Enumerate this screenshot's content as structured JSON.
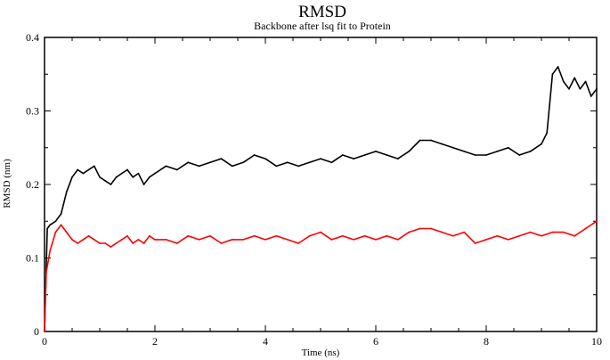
{
  "chart_data": {
    "type": "line",
    "title": "RMSD",
    "subtitle": "Backbone after lsq fit to Protein",
    "xlabel": "Time (ns)",
    "ylabel": "RMSD (nm)",
    "xlim": [
      0,
      10
    ],
    "ylim": [
      0,
      0.4
    ],
    "x_ticks": [
      "0",
      "2",
      "4",
      "6",
      "8",
      "10"
    ],
    "y_ticks": [
      "0",
      "0.1",
      "0.2",
      "0.3",
      "0.4"
    ],
    "grid": false,
    "legend": "none",
    "series": [
      {
        "color": "#000000",
        "x": [
          0,
          0.05,
          0.1,
          0.2,
          0.3,
          0.4,
          0.5,
          0.6,
          0.7,
          0.8,
          0.9,
          1.0,
          1.1,
          1.2,
          1.3,
          1.4,
          1.5,
          1.6,
          1.7,
          1.8,
          1.9,
          2.0,
          2.2,
          2.4,
          2.6,
          2.8,
          3.0,
          3.2,
          3.4,
          3.6,
          3.8,
          4.0,
          4.2,
          4.4,
          4.6,
          4.8,
          5.0,
          5.2,
          5.4,
          5.6,
          5.8,
          6.0,
          6.2,
          6.4,
          6.6,
          6.8,
          7.0,
          7.2,
          7.4,
          7.6,
          7.8,
          8.0,
          8.2,
          8.4,
          8.6,
          8.8,
          9.0,
          9.1,
          9.2,
          9.3,
          9.4,
          9.5,
          9.6,
          9.7,
          9.8,
          9.9,
          10.0
        ],
        "values": [
          0.0,
          0.14,
          0.145,
          0.15,
          0.16,
          0.19,
          0.21,
          0.22,
          0.215,
          0.22,
          0.225,
          0.21,
          0.205,
          0.2,
          0.21,
          0.215,
          0.22,
          0.21,
          0.215,
          0.2,
          0.21,
          0.215,
          0.225,
          0.22,
          0.23,
          0.225,
          0.23,
          0.235,
          0.225,
          0.23,
          0.24,
          0.235,
          0.225,
          0.23,
          0.225,
          0.23,
          0.235,
          0.23,
          0.24,
          0.235,
          0.24,
          0.245,
          0.24,
          0.235,
          0.245,
          0.26,
          0.26,
          0.255,
          0.25,
          0.245,
          0.24,
          0.24,
          0.245,
          0.25,
          0.24,
          0.245,
          0.255,
          0.27,
          0.35,
          0.36,
          0.34,
          0.33,
          0.345,
          0.33,
          0.34,
          0.32,
          0.33
        ]
      },
      {
        "color": "#ff0000",
        "x": [
          0,
          0.03,
          0.1,
          0.2,
          0.3,
          0.4,
          0.5,
          0.6,
          0.7,
          0.8,
          0.9,
          1.0,
          1.1,
          1.2,
          1.3,
          1.4,
          1.5,
          1.6,
          1.7,
          1.8,
          1.9,
          2.0,
          2.2,
          2.4,
          2.6,
          2.8,
          3.0,
          3.2,
          3.4,
          3.6,
          3.8,
          4.0,
          4.2,
          4.4,
          4.6,
          4.8,
          5.0,
          5.2,
          5.4,
          5.6,
          5.8,
          6.0,
          6.2,
          6.4,
          6.6,
          6.8,
          7.0,
          7.2,
          7.4,
          7.6,
          7.8,
          8.0,
          8.2,
          8.4,
          8.6,
          8.8,
          9.0,
          9.2,
          9.4,
          9.6,
          9.8,
          10.0
        ],
        "values": [
          0.0,
          0.08,
          0.11,
          0.135,
          0.145,
          0.135,
          0.125,
          0.12,
          0.125,
          0.13,
          0.125,
          0.12,
          0.12,
          0.115,
          0.12,
          0.125,
          0.13,
          0.12,
          0.125,
          0.12,
          0.13,
          0.125,
          0.125,
          0.12,
          0.13,
          0.125,
          0.13,
          0.12,
          0.125,
          0.125,
          0.13,
          0.125,
          0.13,
          0.125,
          0.12,
          0.13,
          0.135,
          0.125,
          0.13,
          0.125,
          0.13,
          0.125,
          0.13,
          0.125,
          0.135,
          0.14,
          0.14,
          0.135,
          0.13,
          0.135,
          0.12,
          0.125,
          0.13,
          0.125,
          0.13,
          0.135,
          0.13,
          0.135,
          0.135,
          0.13,
          0.14,
          0.15
        ]
      }
    ]
  }
}
